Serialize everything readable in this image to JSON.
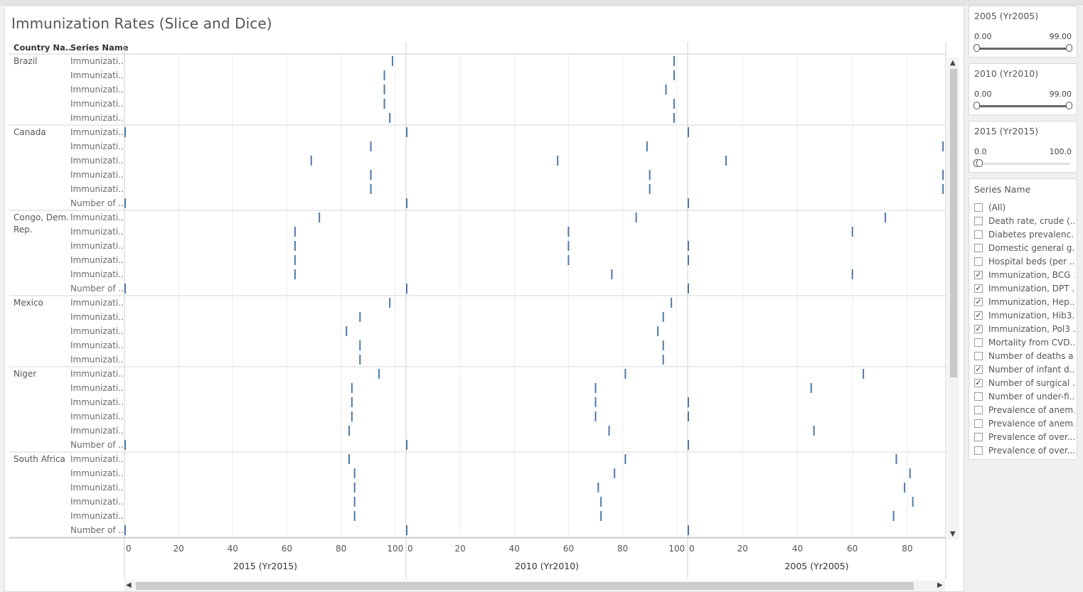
{
  "title": "Immunization Rates (Slice and Dice)",
  "headers": {
    "country": "Country Na..",
    "series": "Series Name"
  },
  "colors": {
    "mark": "#4e79a7",
    "grid": "#ebebeb",
    "divider": "#cfcfcf"
  },
  "panes": [
    {
      "title": "2015 (Yr2015)",
      "ticks": [
        "0",
        "20",
        "40",
        "60",
        "80",
        "100"
      ],
      "xlim": [
        0,
        104
      ]
    },
    {
      "title": "2010 (Yr2010)",
      "ticks": [
        "0",
        "20",
        "40",
        "60",
        "80",
        "100"
      ],
      "xlim": [
        0,
        104
      ]
    },
    {
      "title": "2005 (Yr2005)",
      "ticks": [
        "0",
        "20",
        "40",
        "60",
        "80"
      ],
      "xlim": [
        0,
        94
      ]
    }
  ],
  "chart_data": {
    "type": "scatter",
    "mark": "tick",
    "groups": [
      {
        "country": "Brazil",
        "rows": [
          {
            "series": "Immunizati..",
            "values": [
              99,
              99,
              null
            ]
          },
          {
            "series": "Immunizati..",
            "values": [
              96,
              99,
              null
            ]
          },
          {
            "series": "Immunizati..",
            "values": [
              96,
              96,
              null
            ]
          },
          {
            "series": "Immunizati..",
            "values": [
              96,
              99,
              null
            ]
          },
          {
            "series": "Immunizati..",
            "values": [
              98,
              99,
              null
            ]
          }
        ]
      },
      {
        "country": "Canada",
        "rows": [
          {
            "series": "Immunizati..",
            "values": [
              0,
              0,
              0
            ]
          },
          {
            "series": "Immunizati..",
            "values": [
              91,
              89,
              93
            ]
          },
          {
            "series": "Immunizati..",
            "values": [
              69,
              56,
              14
            ]
          },
          {
            "series": "Immunizati..",
            "values": [
              91,
              90,
              93
            ]
          },
          {
            "series": "Immunizati..",
            "values": [
              91,
              90,
              93
            ]
          },
          {
            "series": "Number of ..",
            "values": [
              0,
              0,
              0
            ]
          }
        ]
      },
      {
        "country": "Congo, Dem. Rep.",
        "rows": [
          {
            "series": "Immunizati..",
            "values": [
              72,
              85,
              72
            ]
          },
          {
            "series": "Immunizati..",
            "values": [
              63,
              60,
              60
            ]
          },
          {
            "series": "Immunizati..",
            "values": [
              63,
              60,
              0
            ]
          },
          {
            "series": "Immunizati..",
            "values": [
              63,
              60,
              0
            ]
          },
          {
            "series": "Immunizati..",
            "values": [
              63,
              76,
              60
            ]
          },
          {
            "series": "Number of ..",
            "values": [
              0,
              0,
              0
            ]
          }
        ]
      },
      {
        "country": "Mexico",
        "rows": [
          {
            "series": "Immunizati..",
            "values": [
              98,
              98,
              null
            ]
          },
          {
            "series": "Immunizati..",
            "values": [
              87,
              95,
              null
            ]
          },
          {
            "series": "Immunizati..",
            "values": [
              82,
              93,
              null
            ]
          },
          {
            "series": "Immunizati..",
            "values": [
              87,
              95,
              null
            ]
          },
          {
            "series": "Immunizati..",
            "values": [
              87,
              95,
              null
            ]
          }
        ]
      },
      {
        "country": "Niger",
        "rows": [
          {
            "series": "Immunizati..",
            "values": [
              94,
              81,
              64
            ]
          },
          {
            "series": "Immunizati..",
            "values": [
              84,
              70,
              45
            ]
          },
          {
            "series": "Immunizati..",
            "values": [
              84,
              70,
              0
            ]
          },
          {
            "series": "Immunizati..",
            "values": [
              84,
              70,
              0
            ]
          },
          {
            "series": "Immunizati..",
            "values": [
              83,
              75,
              46
            ]
          },
          {
            "series": "Number of ..",
            "values": [
              0,
              0,
              0
            ]
          }
        ]
      },
      {
        "country": "South Africa",
        "rows": [
          {
            "series": "Immunizati..",
            "values": [
              83,
              81,
              76
            ]
          },
          {
            "series": "Immunizati..",
            "values": [
              85,
              77,
              81
            ]
          },
          {
            "series": "Immunizati..",
            "values": [
              85,
              71,
              79
            ]
          },
          {
            "series": "Immunizati..",
            "values": [
              85,
              72,
              82
            ]
          },
          {
            "series": "Immunizati..",
            "values": [
              85,
              72,
              75
            ]
          },
          {
            "series": "Number of ..",
            "values": [
              0,
              0,
              0
            ]
          }
        ]
      }
    ]
  },
  "filters": [
    {
      "title": "2005 (Yr2005)",
      "min": "0.00",
      "max": "99.00",
      "low": 0,
      "high": 1
    },
    {
      "title": "2010 (Yr2010)",
      "min": "0.00",
      "max": "99.00",
      "low": 0,
      "high": 1
    },
    {
      "title": "2015 (Yr2015)",
      "min": "0.0",
      "max": "100.0",
      "low": 0,
      "high": 0
    }
  ],
  "legend": {
    "title": "Series Name",
    "items": [
      {
        "label": "(All)",
        "checked": false
      },
      {
        "label": "Death rate, crude (...",
        "checked": false
      },
      {
        "label": "Diabetes prevalenc...",
        "checked": false
      },
      {
        "label": "Domestic general g...",
        "checked": false
      },
      {
        "label": "Hospital beds (per ...",
        "checked": false
      },
      {
        "label": "Immunization, BCG ...",
        "checked": true
      },
      {
        "label": "Immunization, DPT ...",
        "checked": true
      },
      {
        "label": "Immunization, Hep...",
        "checked": true
      },
      {
        "label": "Immunization, Hib3...",
        "checked": true
      },
      {
        "label": "Immunization, Pol3 ...",
        "checked": true
      },
      {
        "label": "Mortality from CVD...",
        "checked": false
      },
      {
        "label": "Number of deaths a...",
        "checked": false
      },
      {
        "label": "Number of infant d...",
        "checked": true
      },
      {
        "label": "Number of surgical ...",
        "checked": true
      },
      {
        "label": "Number of under-fi...",
        "checked": false
      },
      {
        "label": "Prevalence of anem...",
        "checked": false
      },
      {
        "label": "Prevalence of anem...",
        "checked": false
      },
      {
        "label": "Prevalence of over...",
        "checked": false
      },
      {
        "label": "Prevalence of over...",
        "checked": false
      }
    ]
  }
}
